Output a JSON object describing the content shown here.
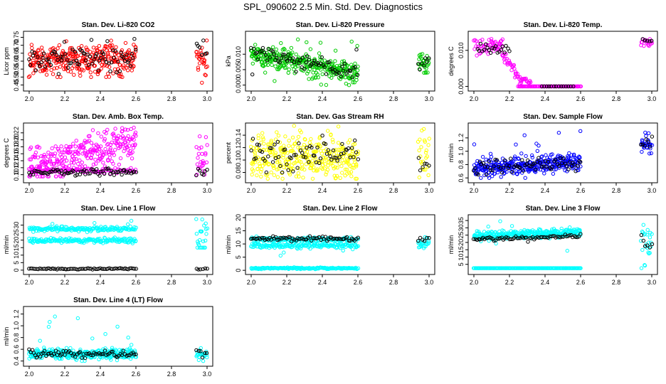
{
  "figure": {
    "title": "SPL_090602  2.5 Min. Std. Dev. Diagnostics"
  },
  "chart_data": [
    {
      "type": "scatter",
      "title": "Stan. Dev. Li-820 CO2",
      "xlabel": "",
      "ylabel": "Licor ppm",
      "xlim": [
        2.0,
        3.0
      ],
      "ylim": [
        0.43,
        0.77
      ],
      "xticks": [
        "2.0",
        "2.2",
        "2.4",
        "2.6",
        "2.8",
        "3.0"
      ],
      "yticks": [
        "0.45",
        "0.50",
        "0.55",
        "0.60",
        "0.65",
        "0.70",
        "0.75"
      ],
      "series": [
        {
          "name": "main",
          "color": "#ff0000",
          "clusters": [
            {
              "x0": 2.0,
              "x1": 2.6,
              "n": 330,
              "center": 0.61,
              "spread": 0.05,
              "min": 0.5,
              "max": 0.76
            },
            {
              "x0": 2.94,
              "x1": 3.0,
              "n": 28,
              "center": 0.62,
              "spread": 0.05,
              "min": 0.44,
              "max": 0.75
            }
          ]
        },
        {
          "name": "overlay",
          "color": "#000000",
          "clusters": [
            {
              "x0": 2.0,
              "x1": 2.6,
              "n": 80,
              "center": 0.62,
              "spread": 0.04,
              "min": 0.52,
              "max": 0.74
            },
            {
              "x0": 2.94,
              "x1": 3.0,
              "n": 7,
              "center": 0.64,
              "spread": 0.05,
              "min": 0.55,
              "max": 0.73
            }
          ]
        }
      ]
    },
    {
      "type": "scatter",
      "title": "Stan. Dev. Li-820 Pressure",
      "xlabel": "",
      "ylabel": "kPa",
      "xlim": [
        2.0,
        3.0
      ],
      "ylim": [
        -0.001,
        0.0165
      ],
      "xticks": [
        "2.0",
        "2.2",
        "2.4",
        "2.6",
        "2.8",
        "3.0"
      ],
      "yticks": [
        "0.000",
        "0.005",
        "0.010"
      ],
      "series": [
        {
          "name": "main",
          "color": "#00cc00",
          "clusters": [
            {
              "x0": 2.0,
              "x1": 2.6,
              "n": 340,
              "trend": [
                0.01,
                0.0035
              ],
              "spread": 0.0018,
              "min": 0.0,
              "max": 0.016
            },
            {
              "x0": 2.94,
              "x1": 3.0,
              "n": 28,
              "center": 0.0065,
              "spread": 0.0025,
              "min": 0.004,
              "max": 0.0145
            }
          ]
        },
        {
          "name": "overlay",
          "color": "#000000",
          "clusters": [
            {
              "x0": 2.0,
              "x1": 2.6,
              "n": 75,
              "trend": [
                0.011,
                0.004
              ],
              "spread": 0.0012,
              "min": 0.0,
              "max": 0.012
            },
            {
              "x0": 2.94,
              "x1": 3.0,
              "n": 7,
              "center": 0.0075,
              "spread": 0.0015,
              "min": 0.005,
              "max": 0.0095
            }
          ]
        }
      ]
    },
    {
      "type": "scatter",
      "title": "Stan. Dev. Li-820 Temp.",
      "xlabel": "",
      "ylabel": "degrees C",
      "xlim": [
        2.0,
        3.0
      ],
      "ylim": [
        -0.0005,
        0.0145
      ],
      "xticks": [
        "2.0",
        "2.2",
        "2.4",
        "2.6",
        "2.8",
        "3.0"
      ],
      "yticks": [
        "0.000",
        "0.010"
      ],
      "series": [
        {
          "name": "main",
          "color": "#ff00ff",
          "clusters": [
            {
              "x0": 2.0,
              "x1": 2.1,
              "n": 30,
              "center": 0.011,
              "spread": 0.0015,
              "min": 0.008,
              "max": 0.0135
            },
            {
              "x0": 2.1,
              "x1": 2.16,
              "n": 26,
              "center": 0.0115,
              "spread": 0.001,
              "min": 0.009,
              "max": 0.014
            },
            {
              "x0": 2.16,
              "x1": 2.26,
              "n": 34,
              "trend": [
                0.009,
                0.002
              ],
              "spread": 0.0008,
              "min": 0.0005,
              "max": 0.0115
            },
            {
              "x0": 2.26,
              "x1": 2.32,
              "n": 16,
              "center": 0.0015,
              "spread": 0.0005,
              "min": 0.001,
              "max": 0.0025
            },
            {
              "x0": 2.25,
              "x1": 2.6,
              "n": 90,
              "center": 0.0,
              "spread": 0.0,
              "min": 0.0,
              "max": 0.0
            },
            {
              "x0": 2.94,
              "x1": 3.0,
              "n": 18,
              "center": 0.0123,
              "spread": 0.0006,
              "min": 0.0112,
              "max": 0.0136
            }
          ]
        },
        {
          "name": "overlay",
          "color": "#000000",
          "clusters": [
            {
              "x0": 2.02,
              "x1": 2.2,
              "n": 20,
              "center": 0.0105,
              "spread": 0.0008,
              "min": 0.009,
              "max": 0.012
            },
            {
              "x0": 2.38,
              "x1": 2.56,
              "n": 14,
              "center": 0.0,
              "spread": 0.0,
              "min": 0.0,
              "max": 0.0
            },
            {
              "x0": 2.95,
              "x1": 3.0,
              "n": 5,
              "center": 0.0128,
              "spread": 0.0004,
              "min": 0.012,
              "max": 0.0135
            }
          ]
        }
      ]
    },
    {
      "type": "scatter",
      "title": "Stan. Dev. Amb. Box Temp.",
      "xlabel": "",
      "ylabel": "degrees C",
      "xlim": [
        2.0,
        3.0
      ],
      "ylim": [
        0.085,
        0.24
      ],
      "xticks": [
        "2.0",
        "2.2",
        "2.4",
        "2.6",
        "2.8",
        "3.0"
      ],
      "yticks": [
        "0.10",
        "0.12",
        "0.14",
        "0.16",
        "0.18",
        "0.20",
        "0.22"
      ],
      "series": [
        {
          "name": "main",
          "color": "#ff00ff",
          "clusters": [
            {
              "x0": 2.0,
              "x1": 2.6,
              "n": 300,
              "trend": [
                0.12,
                0.2
              ],
              "spread": 0.025,
              "min": 0.095,
              "max": 0.235
            },
            {
              "x0": 2.0,
              "x1": 2.6,
              "n": 90,
              "center": 0.112,
              "spread": 0.004,
              "min": 0.103,
              "max": 0.12
            },
            {
              "x0": 2.94,
              "x1": 3.0,
              "n": 24,
              "center": 0.145,
              "spread": 0.03,
              "min": 0.1,
              "max": 0.21
            }
          ]
        },
        {
          "name": "overlay",
          "color": "#000000",
          "clusters": [
            {
              "x0": 2.0,
              "x1": 2.6,
              "n": 75,
              "center": 0.107,
              "spread": 0.005,
              "min": 0.097,
              "max": 0.118
            },
            {
              "x0": 2.94,
              "x1": 3.0,
              "n": 7,
              "center": 0.108,
              "spread": 0.006,
              "min": 0.098,
              "max": 0.12
            }
          ]
        }
      ]
    },
    {
      "type": "scatter",
      "title": "Stan. Dev. Gas Stream RH",
      "xlabel": "",
      "ylabel": "percent",
      "xlim": [
        2.0,
        3.0
      ],
      "ylim": [
        0.068,
        0.155
      ],
      "xticks": [
        "2.0",
        "2.2",
        "2.4",
        "2.6",
        "2.8",
        "3.0"
      ],
      "yticks": [
        "0.08",
        "0.10",
        "0.12",
        "0.14"
      ],
      "series": [
        {
          "name": "main",
          "color": "#ffff00",
          "clusters": [
            {
              "x0": 2.0,
              "x1": 2.6,
              "n": 330,
              "center": 0.105,
              "spread": 0.018,
              "min": 0.07,
              "max": 0.155
            },
            {
              "x0": 2.94,
              "x1": 3.0,
              "n": 24,
              "center": 0.105,
              "spread": 0.02,
              "min": 0.072,
              "max": 0.15
            }
          ]
        },
        {
          "name": "overlay",
          "color": "#000000",
          "clusters": [
            {
              "x0": 2.0,
              "x1": 2.6,
              "n": 70,
              "center": 0.108,
              "spread": 0.016,
              "min": 0.08,
              "max": 0.15
            },
            {
              "x0": 2.94,
              "x1": 3.0,
              "n": 6,
              "center": 0.095,
              "spread": 0.01,
              "min": 0.082,
              "max": 0.11
            }
          ]
        }
      ]
    },
    {
      "type": "scatter",
      "title": "Stan. Dev. Sample Flow",
      "xlabel": "",
      "ylabel": "ml/min",
      "xlim": [
        2.0,
        3.0
      ],
      "ylim": [
        0.57,
        1.38
      ],
      "xticks": [
        "2.0",
        "2.2",
        "2.4",
        "2.6",
        "2.8",
        "3.0"
      ],
      "yticks": [
        "0.6",
        "0.8",
        "1.0",
        "1.2"
      ],
      "series": [
        {
          "name": "main",
          "color": "#0000ff",
          "clusters": [
            {
              "x0": 2.0,
              "x1": 2.6,
              "n": 340,
              "trend": [
                0.74,
                0.84
              ],
              "spread": 0.07,
              "min": 0.6,
              "max": 1.36
            },
            {
              "x0": 2.94,
              "x1": 3.0,
              "n": 28,
              "center": 1.1,
              "spread": 0.06,
              "min": 0.95,
              "max": 1.28
            }
          ]
        },
        {
          "name": "overlay",
          "color": "#000000",
          "clusters": [
            {
              "x0": 2.0,
              "x1": 2.6,
              "n": 70,
              "trend": [
                0.74,
                0.84
              ],
              "spread": 0.05,
              "min": 0.65,
              "max": 1.0
            },
            {
              "x0": 2.94,
              "x1": 3.0,
              "n": 7,
              "center": 1.15,
              "spread": 0.07,
              "min": 0.82,
              "max": 1.28
            }
          ]
        }
      ]
    },
    {
      "type": "scatter",
      "title": "Stan. Dev. Line 1 Flow",
      "xlabel": "",
      "ylabel": "ml/min",
      "xlim": [
        2.0,
        3.0
      ],
      "ylim": [
        -1,
        35
      ],
      "xticks": [
        "2.0",
        "2.2",
        "2.4",
        "2.6",
        "2.8",
        "3.0"
      ],
      "yticks": [
        "0",
        "5",
        "10",
        "15",
        "20",
        "25",
        "30"
      ],
      "series": [
        {
          "name": "main",
          "color": "#00ffff",
          "clusters": [
            {
              "x0": 2.0,
              "x1": 2.6,
              "n": 170,
              "center": 27.5,
              "spread": 0.8,
              "min": 24.5,
              "max": 34
            },
            {
              "x0": 2.0,
              "x1": 2.6,
              "n": 170,
              "center": 19.8,
              "spread": 0.7,
              "min": 15.5,
              "max": 23
            },
            {
              "x0": 2.94,
              "x1": 3.0,
              "n": 24,
              "center": 22.0,
              "spread": 6.0,
              "min": 15,
              "max": 34
            }
          ]
        },
        {
          "name": "overlay",
          "color": "#000000",
          "clusters": [
            {
              "x0": 2.0,
              "x1": 2.6,
              "n": 70,
              "center": 0.9,
              "spread": 0.2,
              "min": 0.4,
              "max": 1.6
            },
            {
              "x0": 2.94,
              "x1": 3.0,
              "n": 6,
              "center": 0.9,
              "spread": 0.3,
              "min": 0.4,
              "max": 1.8
            }
          ]
        }
      ]
    },
    {
      "type": "scatter",
      "title": "Stan. Dev. Line 2 Flow",
      "xlabel": "",
      "ylabel": "ml/min",
      "xlim": [
        2.0,
        3.0
      ],
      "ylim": [
        -0.5,
        20
      ],
      "xticks": [
        "2.0",
        "2.2",
        "2.4",
        "2.6",
        "2.8",
        "3.0"
      ],
      "yticks": [
        "0",
        "5",
        "10",
        "15",
        "20"
      ],
      "series": [
        {
          "name": "main",
          "color": "#00ffff",
          "clusters": [
            {
              "x0": 2.0,
              "x1": 2.6,
              "n": 170,
              "center": 11.7,
              "spread": 0.4,
              "min": 9.5,
              "max": 18.5
            },
            {
              "x0": 2.0,
              "x1": 2.6,
              "n": 170,
              "center": 9.4,
              "spread": 0.5,
              "min": 5.5,
              "max": 11
            },
            {
              "x0": 2.0,
              "x1": 2.6,
              "n": 170,
              "center": 0.8,
              "spread": 0.15,
              "min": 0.4,
              "max": 1.3
            },
            {
              "x0": 2.94,
              "x1": 3.0,
              "n": 24,
              "center": 10.5,
              "spread": 1.5,
              "min": 0.5,
              "max": 19.5
            }
          ]
        },
        {
          "name": "overlay",
          "color": "#000000",
          "clusters": [
            {
              "x0": 2.0,
              "x1": 2.6,
              "n": 70,
              "center": 12.0,
              "spread": 0.4,
              "min": 10.8,
              "max": 13
            },
            {
              "x0": 2.94,
              "x1": 3.0,
              "n": 6,
              "center": 11.5,
              "spread": 1.3,
              "min": 9,
              "max": 13
            }
          ]
        }
      ]
    },
    {
      "type": "scatter",
      "title": "Stan. Dev. Line 3 Flow",
      "xlabel": "",
      "ylabel": "ml/min",
      "xlim": [
        2.0,
        3.0
      ],
      "ylim": [
        0,
        37
      ],
      "xticks": [
        "2.0",
        "2.2",
        "2.4",
        "2.6",
        "2.8",
        "3.0"
      ],
      "yticks": [
        "5",
        "10",
        "15",
        "20",
        "25",
        "30",
        "35"
      ],
      "series": [
        {
          "name": "main",
          "color": "#00ffff",
          "clusters": [
            {
              "x0": 2.0,
              "x1": 2.6,
              "n": 300,
              "trend": [
                24,
                27
              ],
              "spread": 1.5,
              "min": 14,
              "max": 36
            },
            {
              "x0": 2.0,
              "x1": 2.6,
              "n": 170,
              "center": 2.4,
              "spread": 0.0,
              "min": 2.4,
              "max": 2.4
            },
            {
              "x0": 2.94,
              "x1": 3.0,
              "n": 24,
              "center": 20.0,
              "spread": 8.0,
              "min": 2.4,
              "max": 37
            }
          ]
        },
        {
          "name": "overlay",
          "color": "#000000",
          "clusters": [
            {
              "x0": 2.0,
              "x1": 2.6,
              "n": 70,
              "trend": [
                22,
                24.5
              ],
              "spread": 0.6,
              "min": 19,
              "max": 26
            },
            {
              "x0": 2.94,
              "x1": 3.0,
              "n": 6,
              "center": 21.0,
              "spread": 3.0,
              "min": 16,
              "max": 25
            }
          ]
        }
      ]
    },
    {
      "type": "scatter",
      "title": "Stan. Dev. Line 4 (LT) Flow",
      "xlabel": "",
      "ylabel": "ml/min",
      "xlim": [
        2.0,
        3.0
      ],
      "ylim": [
        0.36,
        1.28
      ],
      "xticks": [
        "2.0",
        "2.2",
        "2.4",
        "2.6",
        "2.8",
        "3.0"
      ],
      "yticks": [
        "0.4",
        "0.6",
        "0.8",
        "1.0",
        "1.2"
      ],
      "series": [
        {
          "name": "main",
          "color": "#00ffff",
          "clusters": [
            {
              "x0": 2.0,
              "x1": 2.6,
              "n": 330,
              "center": 0.52,
              "spread": 0.04,
              "min": 0.4,
              "max": 1.2
            },
            {
              "x0": 2.94,
              "x1": 3.0,
              "n": 24,
              "center": 0.52,
              "spread": 0.05,
              "min": 0.4,
              "max": 0.62
            }
          ]
        },
        {
          "name": "overlay",
          "color": "#000000",
          "clusters": [
            {
              "x0": 2.0,
              "x1": 2.6,
              "n": 70,
              "center": 0.52,
              "spread": 0.03,
              "min": 0.45,
              "max": 0.6
            },
            {
              "x0": 2.94,
              "x1": 3.0,
              "n": 6,
              "center": 0.54,
              "spread": 0.04,
              "min": 0.46,
              "max": 0.6
            }
          ]
        }
      ]
    }
  ]
}
